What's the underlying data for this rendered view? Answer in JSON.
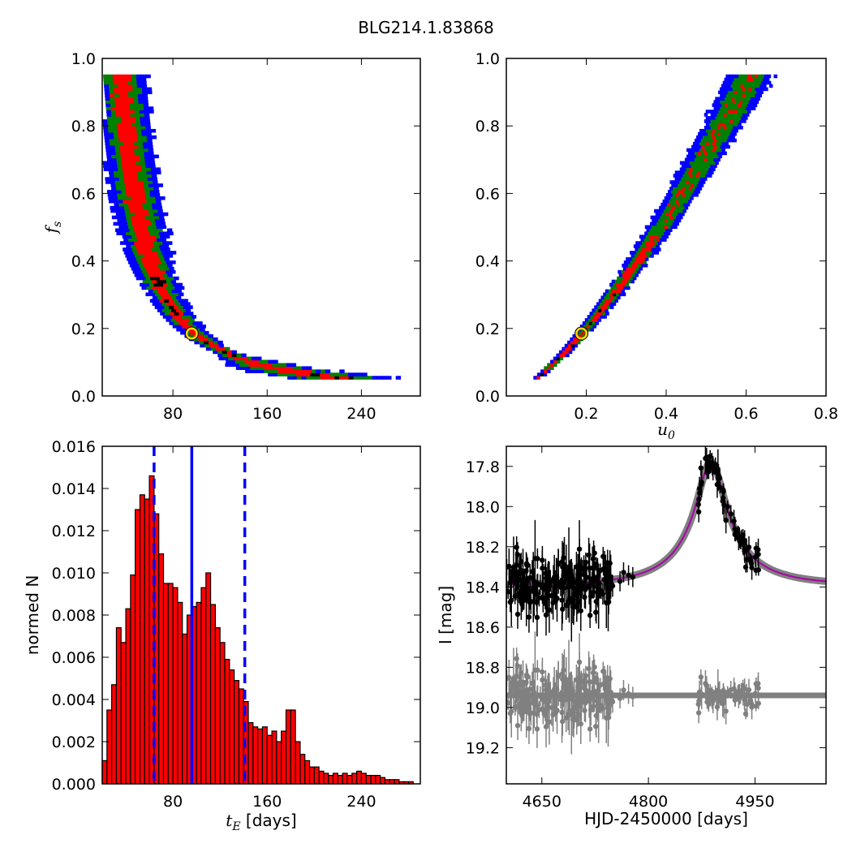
{
  "figure": {
    "title": "BLG214.1.83868"
  },
  "colors": {
    "level_outer": "#0000ff",
    "level_mid": "#008000",
    "level_inner": "#ff0000",
    "level_core": "#000000",
    "best_marker": "#ffd700",
    "hist_fill": "#ff0000",
    "hist_edge": "#000000",
    "vlines": "#0000ff",
    "model_line": "#aa00aa",
    "model_band": "#808080",
    "data_points": "#000000",
    "residual_points": "#808080"
  },
  "chart_data": [
    {
      "id": "tE_vs_fs",
      "type": "heatmap",
      "title": "",
      "xlabel": "",
      "ylabel": "f_s",
      "ylabel_main": "f",
      "ylabel_sub": "s",
      "xlim": [
        20,
        290
      ],
      "ylim": [
        0.0,
        1.0
      ],
      "xticks": [
        "80",
        "160",
        "240"
      ],
      "yticks": [
        "0.0",
        "0.2",
        "0.4",
        "0.6",
        "0.8",
        "1.0"
      ],
      "grid": false,
      "best_fit": {
        "x": 96,
        "y": 0.185
      }
    },
    {
      "id": "u0_vs_fs",
      "type": "heatmap",
      "title": "",
      "xlabel": "u_0",
      "xlabel_main": "u",
      "xlabel_sub": "0",
      "ylabel": "",
      "xlim": [
        0.0,
        0.8
      ],
      "ylim": [
        0.0,
        1.0
      ],
      "xticks": [
        "0.2",
        "0.4",
        "0.6",
        "0.8"
      ],
      "yticks": [
        "0.0",
        "0.2",
        "0.4",
        "0.6",
        "0.8",
        "1.0"
      ],
      "grid": false,
      "best_fit": {
        "x": 0.188,
        "y": 0.185
      }
    },
    {
      "id": "tE_histogram",
      "type": "bar",
      "title": "",
      "xlabel": "t_E [days]",
      "xlabel_main": "t",
      "xlabel_sub": "E",
      "xlabel_unit": " [days]",
      "ylabel": "normed N",
      "xlim": [
        20,
        290
      ],
      "ylim": [
        0.0,
        0.016
      ],
      "xticks": [
        "80",
        "160",
        "240"
      ],
      "yticks": [
        "0.000",
        "0.002",
        "0.004",
        "0.006",
        "0.008",
        "0.010",
        "0.012",
        "0.014",
        "0.016"
      ],
      "bin_start": 20,
      "bin_width": 4,
      "values": [
        0.0011,
        0.0035,
        0.0047,
        0.0074,
        0.0067,
        0.0083,
        0.0099,
        0.013,
        0.0137,
        0.0135,
        0.0146,
        0.0128,
        0.0109,
        0.0095,
        0.0095,
        0.0093,
        0.0086,
        0.0071,
        0.008,
        0.0084,
        0.0086,
        0.0093,
        0.01,
        0.0085,
        0.0074,
        0.0067,
        0.0059,
        0.0054,
        0.0049,
        0.0045,
        0.0039,
        0.0029,
        0.0027,
        0.0026,
        0.0027,
        0.0023,
        0.0025,
        0.002,
        0.0025,
        0.0035,
        0.0035,
        0.002,
        0.0014,
        0.0011,
        0.0008,
        0.0008,
        0.0006,
        0.0005,
        0.0004,
        0.0005,
        0.0004,
        0.0005,
        0.0004,
        0.0005,
        0.0006,
        0.0005,
        0.0004,
        0.0004,
        0.0004,
        0.0003,
        0.0002,
        0.0002,
        0.0002,
        0.0001,
        0.0001,
        0.0001
      ],
      "vlines": [
        {
          "x": 64,
          "style": "dashed"
        },
        {
          "x": 96,
          "style": "solid"
        },
        {
          "x": 141,
          "style": "dashed"
        }
      ]
    },
    {
      "id": "light_curve",
      "type": "scatter",
      "title": "",
      "xlabel": "HJD-2450000 [days]",
      "ylabel": "I [mag]",
      "xlim": [
        4600,
        5050
      ],
      "ylim": [
        19.38,
        17.7
      ],
      "y_inverted": true,
      "xticks": [
        "4650",
        "4800",
        "4950"
      ],
      "yticks": [
        "17.8",
        "18.0",
        "18.2",
        "18.4",
        "18.6",
        "18.8",
        "19.0",
        "19.2"
      ],
      "grid": false,
      "model": {
        "t0": 4888,
        "tE": 96,
        "u0": 0.188,
        "fs": 0.185,
        "I_base": 18.38
      },
      "residual_offset": 18.94
    }
  ]
}
